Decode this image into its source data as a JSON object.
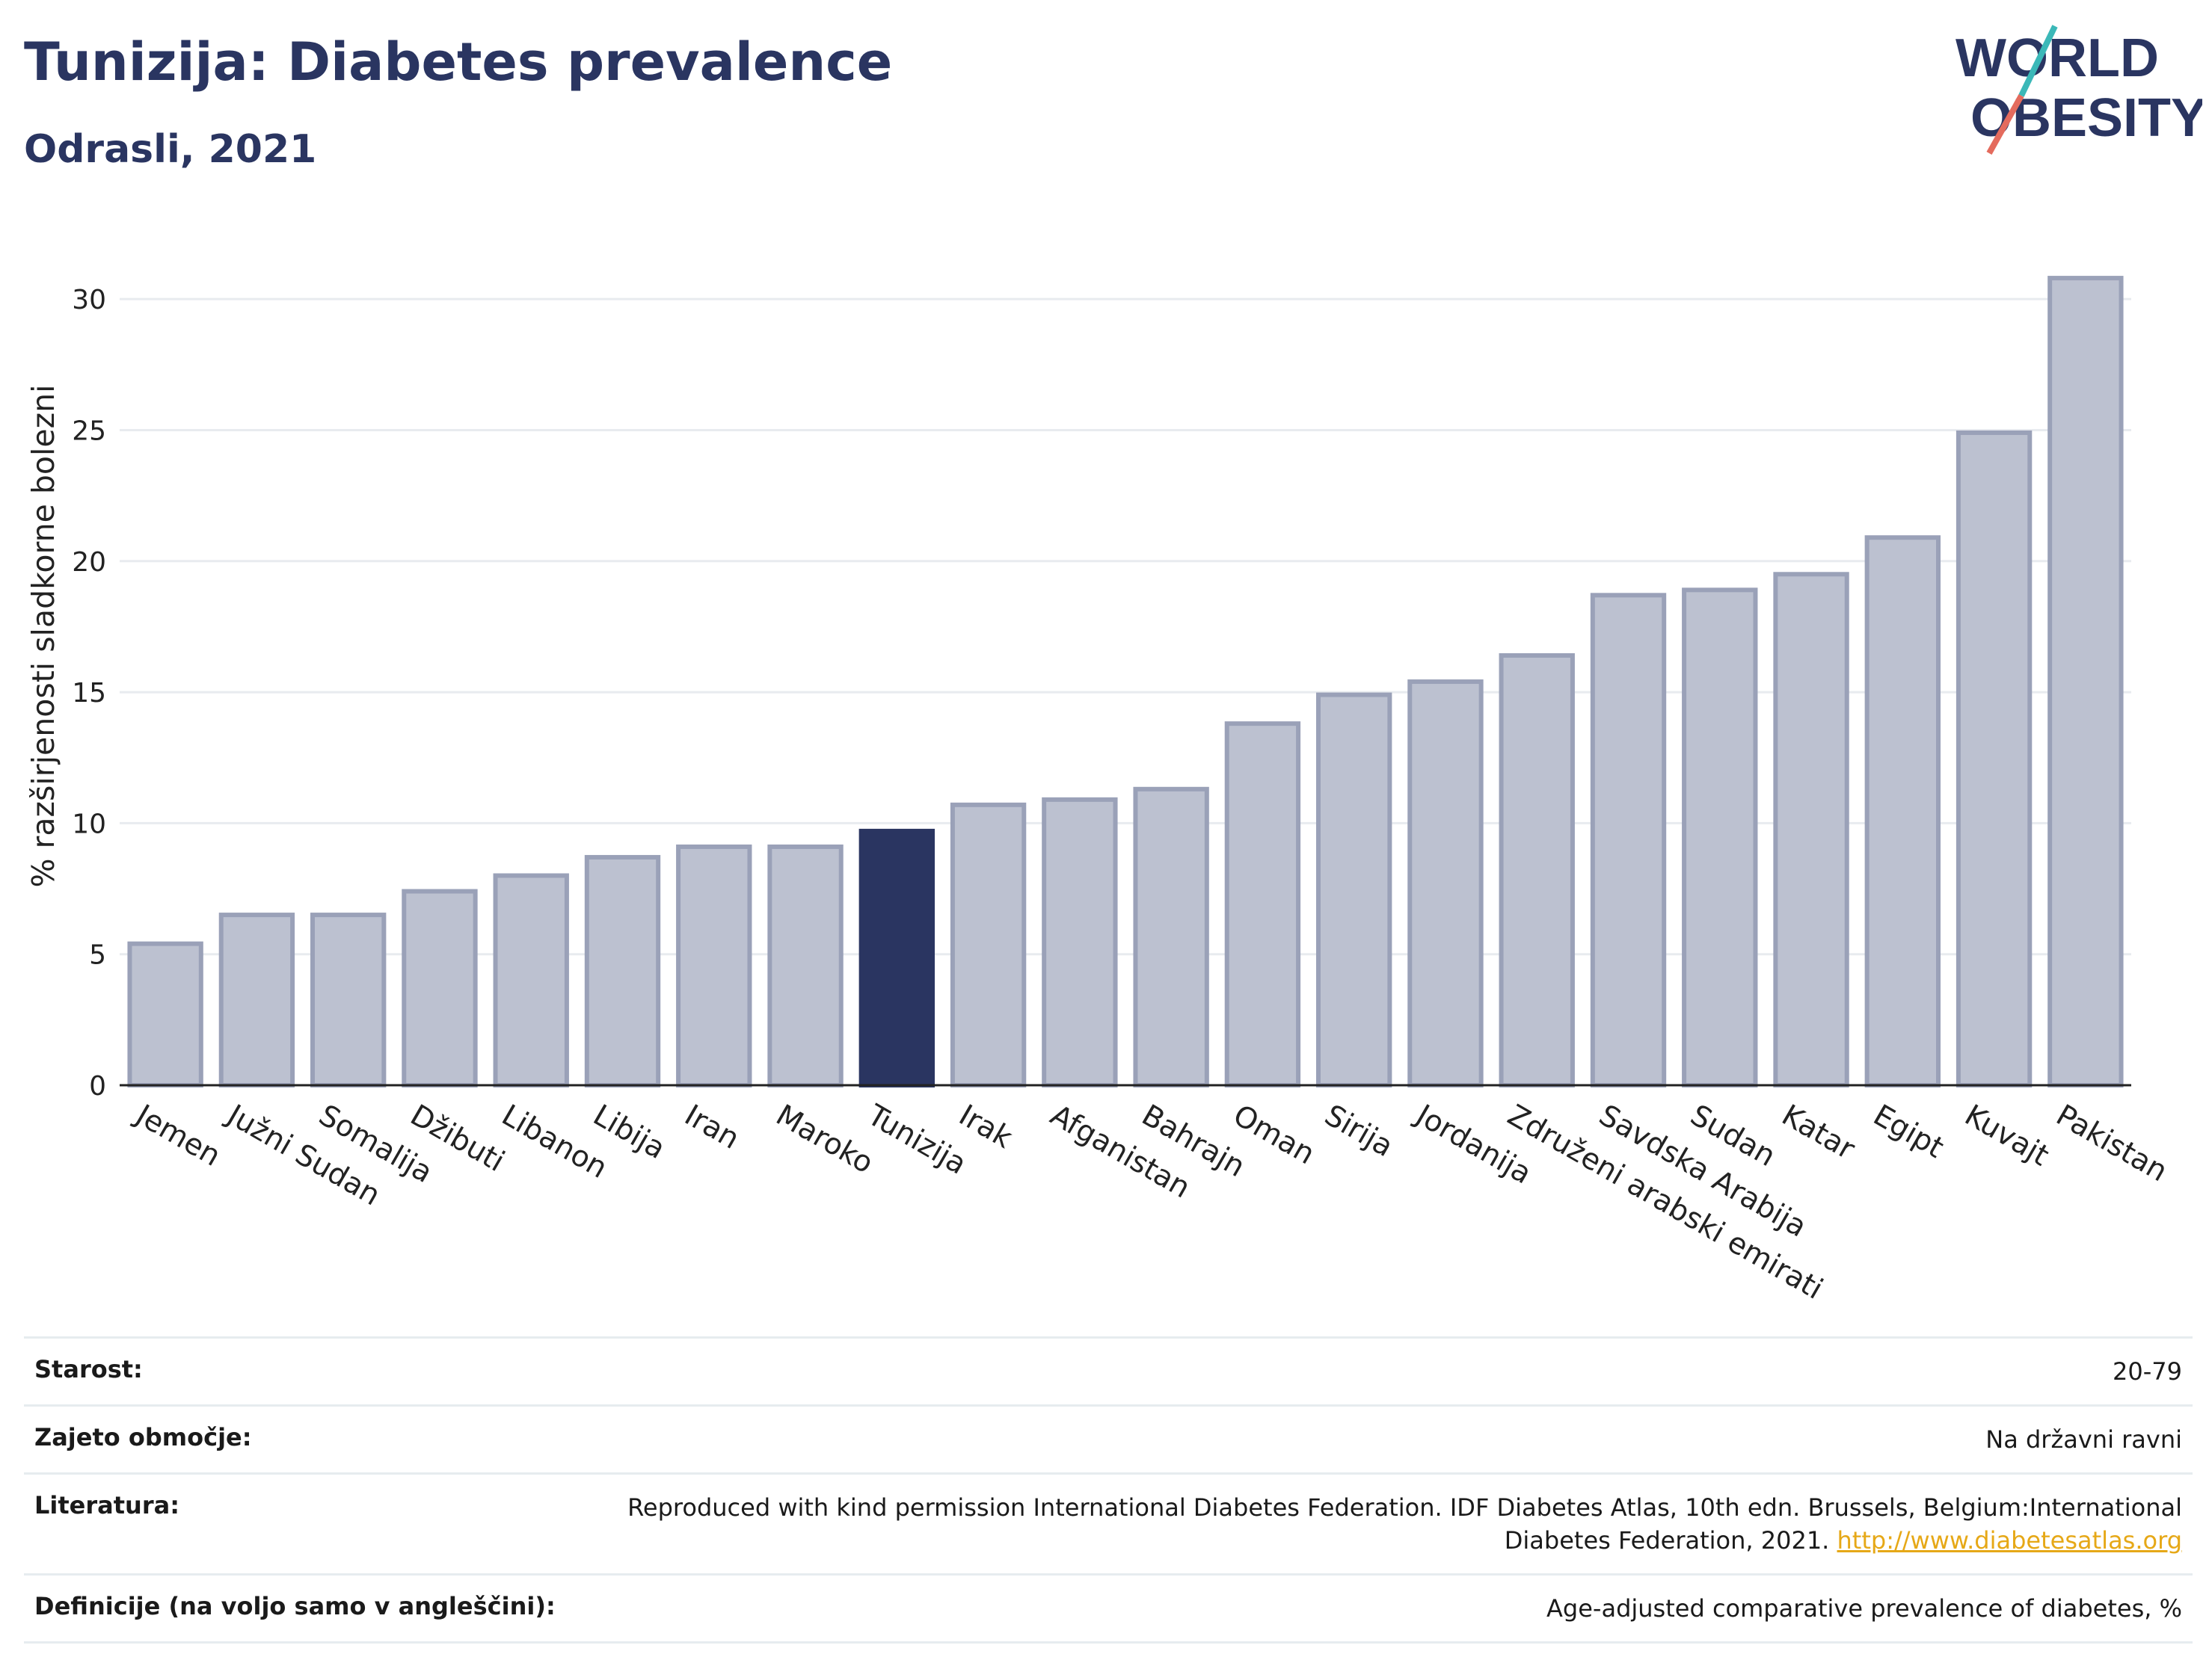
{
  "title": "Tunizija: Diabetes prevalence",
  "subtitle": "Odrasli, 2021",
  "logo": {
    "line1": "WORLD",
    "line2": "OBESITY"
  },
  "colors": {
    "bar": "#bcc1d0",
    "bar_border": "#9aa1b8",
    "highlight": "#2a3561",
    "grid": "#e8ebef",
    "title": "#2a3561",
    "link": "#e6a817"
  },
  "chart_data": {
    "type": "bar",
    "ylabel": "% razširjenosti sladkorne bolezni",
    "xlabel": "",
    "ylim": [
      0,
      32
    ],
    "yticks": [
      0,
      5,
      10,
      15,
      20,
      25,
      30
    ],
    "highlight": "Tunizija",
    "categories": [
      "Jemen",
      "Južni Sudan",
      "Somalija",
      "Džibuti",
      "Libanon",
      "Libija",
      "Iran",
      "Maroko",
      "Tunizija",
      "Irak",
      "Afganistan",
      "Bahrajn",
      "Oman",
      "Sirija",
      "Jordanija",
      "Združeni arabski emirati",
      "Savdska Arabija",
      "Sudan",
      "Katar",
      "Egipt",
      "Kuvajt",
      "Pakistan"
    ],
    "values": [
      5.4,
      6.5,
      6.5,
      7.4,
      8.0,
      8.7,
      9.1,
      9.1,
      9.7,
      10.7,
      10.9,
      11.3,
      13.8,
      14.9,
      15.4,
      16.4,
      18.7,
      18.9,
      19.5,
      20.9,
      24.9,
      30.8
    ]
  },
  "meta": [
    {
      "label": "Starost:",
      "value": "20-79"
    },
    {
      "label": "Zajeto območje:",
      "value": "Na državni ravni"
    },
    {
      "label": "Literatura:",
      "value": "Reproduced with kind permission International Diabetes Federation.  IDF Diabetes Atlas, 10th edn. Brussels, Belgium:International Diabetes Federation, 2021. ",
      "link": "http://www.diabetesatlas.org"
    },
    {
      "label": "Definicije (na voljo samo v angleščini):",
      "value": "Age-adjusted comparative prevalence of diabetes, %"
    }
  ]
}
